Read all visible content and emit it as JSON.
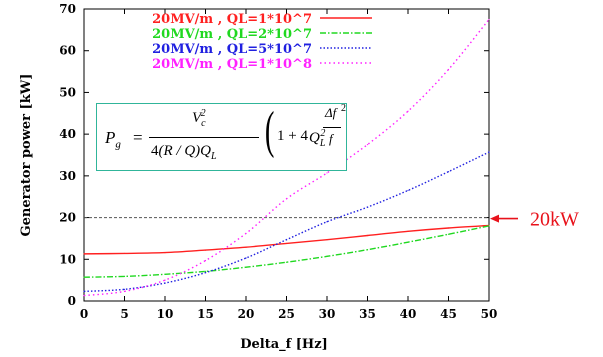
{
  "chart_data": {
    "type": "line",
    "title": "",
    "xlabel": "Delta_f [Hz]",
    "ylabel": "Generator power [kW]",
    "xlim": [
      0,
      50
    ],
    "ylim": [
      0,
      70
    ],
    "x_ticks": [
      "0",
      "5",
      "10",
      "15",
      "20",
      "25",
      "30",
      "35",
      "40",
      "45",
      "50"
    ],
    "y_ticks": [
      "0",
      "10",
      "20",
      "30",
      "40",
      "50",
      "60",
      "70"
    ],
    "grid": false,
    "legend_position": "top-left",
    "series": [
      {
        "name": "20MV/m , QL=1*10^7",
        "color": "#ff2020",
        "dash": "",
        "x": [
          0,
          5,
          10,
          15,
          20,
          25,
          30,
          35,
          40,
          45,
          50
        ],
        "y": [
          11.3,
          11.4,
          11.6,
          12.2,
          12.9,
          13.8,
          14.7,
          15.7,
          16.7,
          17.5,
          18.1
        ]
      },
      {
        "name": "20MV/m , QL=2*10^7",
        "color": "#20d820",
        "dash": "6,2,1.5,2",
        "x": [
          0,
          5,
          10,
          15,
          20,
          25,
          30,
          35,
          40,
          45,
          50
        ],
        "y": [
          5.7,
          5.9,
          6.4,
          7.1,
          8.1,
          9.3,
          10.7,
          12.3,
          14.1,
          16.0,
          18.0
        ]
      },
      {
        "name": "20MV/m , QL=5*10^7",
        "color": "#2020e0",
        "dash": "1.5,2",
        "x": [
          0,
          5,
          10,
          15,
          20,
          25,
          30,
          35,
          40,
          45,
          50
        ],
        "y": [
          2.3,
          2.8,
          4.3,
          6.8,
          10.3,
          14.7,
          19.0,
          22.5,
          26.5,
          31.0,
          35.7
        ]
      },
      {
        "name": "20MV/m , QL=1*10^8",
        "color": "#ff20ff",
        "dash": "1.5,3",
        "x": [
          0,
          5,
          10,
          15,
          20,
          25,
          30,
          35,
          40,
          45,
          50
        ],
        "y": [
          1.3,
          2.3,
          5.0,
          9.7,
          16.2,
          24.5,
          30.7,
          37.5,
          45.5,
          55.5,
          67.5
        ]
      }
    ],
    "reference_line": {
      "y": 20,
      "color": "#555555"
    },
    "annotation": {
      "text": "20kW",
      "color": "#e8121b"
    }
  },
  "formula": {
    "lhs": "P",
    "lhs_sub": "g",
    "equals": "=",
    "num": "V",
    "num_sub": "c",
    "num_sup": "2",
    "den_prefix": "4",
    "den_inner": "R / Q",
    "den_suffix": "Q",
    "den_suffix_sub": "L",
    "one_plus": "1 + 4",
    "q": "Q",
    "q_sub": "L",
    "q_sup": "2",
    "delta_f": "Δf",
    "f": "f",
    "outer_sup": "2"
  }
}
